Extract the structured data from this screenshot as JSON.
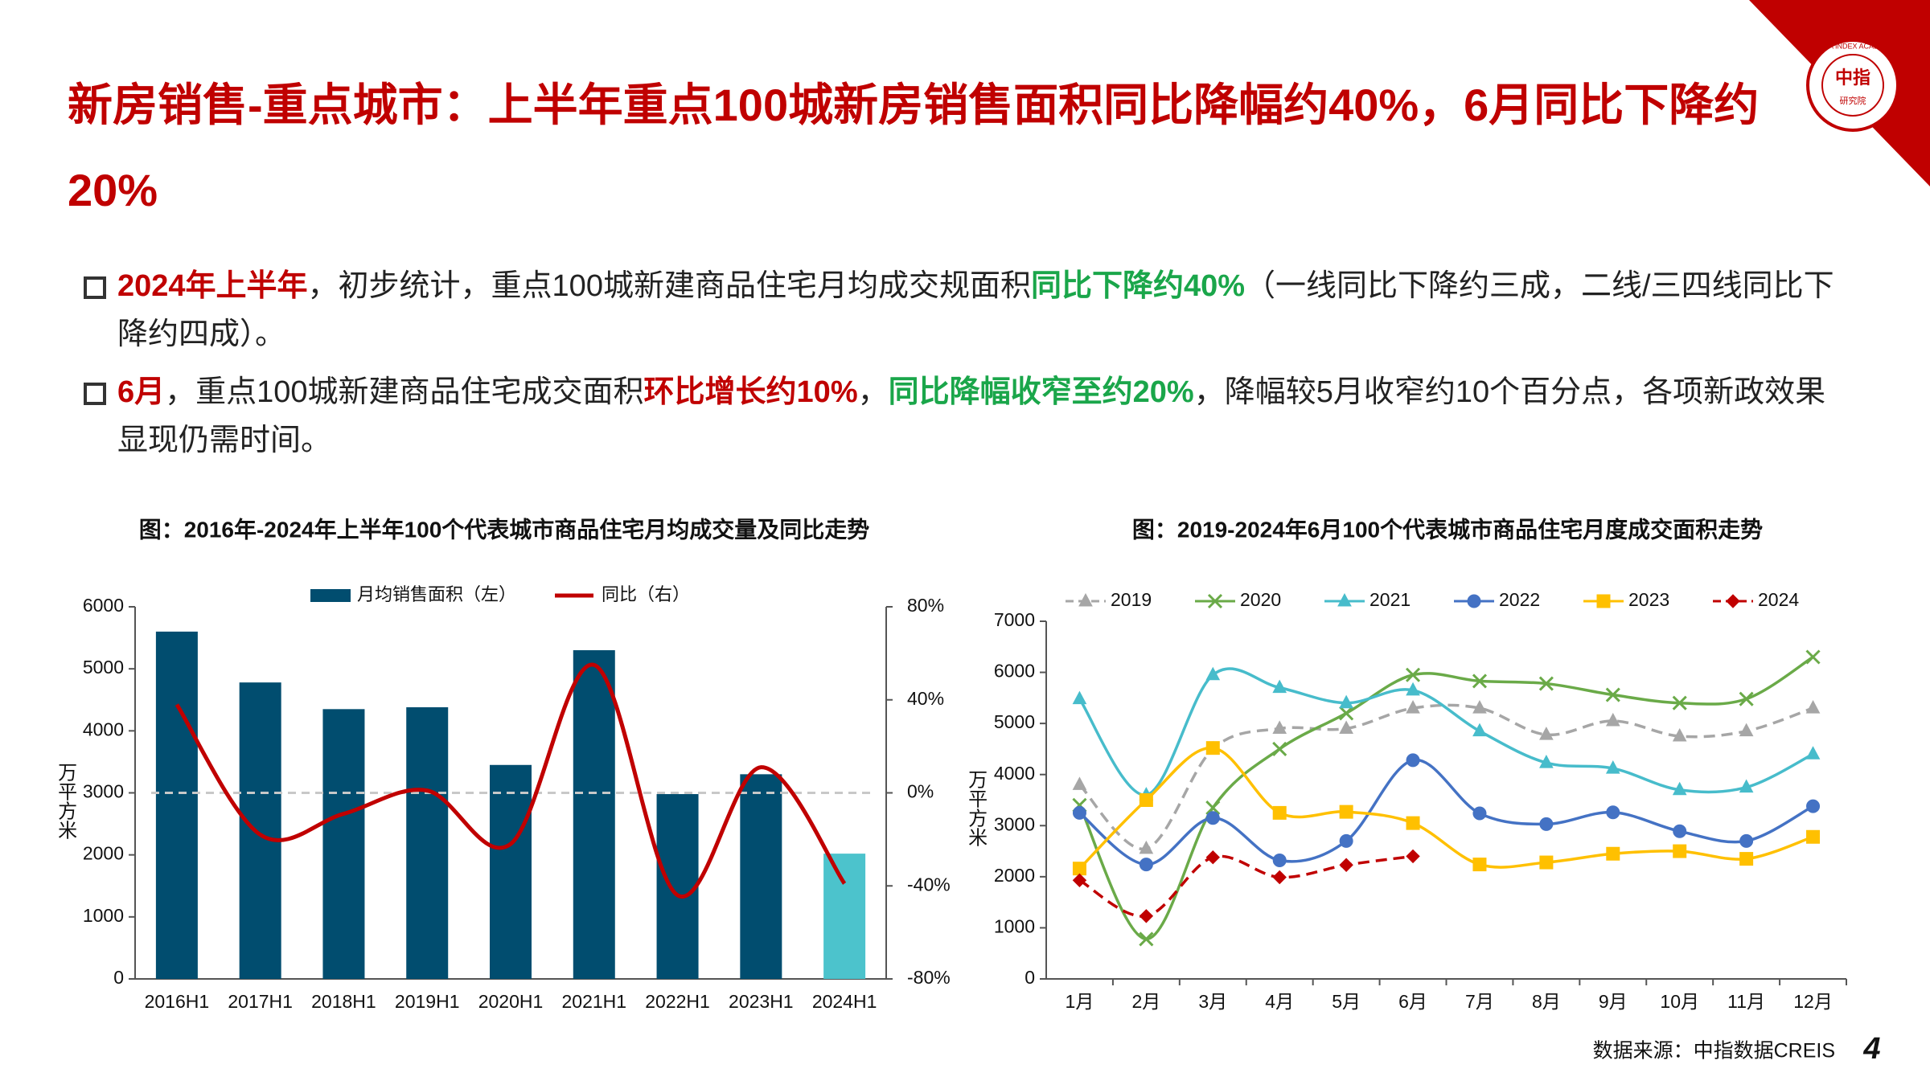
{
  "header": {
    "title": "新房销售-重点城市：上半年重点100城新房销售面积同比降幅约40%，6月同比下降约20%"
  },
  "logo": {
    "name": "CHINA INDEX ACADEMY",
    "mark": "中指",
    "sub": "研究院"
  },
  "bullets": [
    {
      "segments": [
        {
          "text": "2024年上半年",
          "color": "#c00000"
        },
        {
          "text": "，初步统计，重点100城新建商品住宅月均成交规面积"
        },
        {
          "text": "同比下降约40%",
          "color": "#1aa64a"
        },
        {
          "text": "（一线同比下降约三成，二线/三四线同比下降约四成）。"
        }
      ]
    },
    {
      "segments": [
        {
          "text": "6月",
          "color": "#c00000"
        },
        {
          "text": "，重点100城新建商品住宅成交面积"
        },
        {
          "text": "环比增长约10%",
          "color": "#c00000"
        },
        {
          "text": "，"
        },
        {
          "text": "同比降幅收窄至约20%",
          "color": "#1aa64a"
        },
        {
          "text": "，降幅较5月收窄约10个百分点，各项新政效果显现仍需时间。"
        }
      ]
    }
  ],
  "chart_data": [
    {
      "type": "combo",
      "title": "图：2016年-2024年上半年100个代表城市商品住宅月均成交量及同比走势",
      "y_label": "万平方米",
      "categories": [
        "2016H1",
        "2017H1",
        "2018H1",
        "2019H1",
        "2020H1",
        "2021H1",
        "2022H1",
        "2023H1",
        "2024H1"
      ],
      "series": [
        {
          "name": "月均销售面积（左）",
          "type": "bar",
          "color": "#014d6f",
          "colors": [
            "#014d6f",
            "#014d6f",
            "#014d6f",
            "#014d6f",
            "#014d6f",
            "#014d6f",
            "#014d6f",
            "#014d6f",
            "#4cc3cc"
          ],
          "values": [
            5600,
            4780,
            4350,
            4380,
            3450,
            5300,
            2980,
            3300,
            2020
          ]
        },
        {
          "name": "同比（右）",
          "type": "line",
          "axis": "y2",
          "color": "#c00000",
          "values": [
            38,
            -18,
            -9,
            1,
            -22,
            55,
            -44,
            11,
            -39
          ]
        }
      ],
      "ylim": [
        0,
        6000
      ],
      "yticks": [
        0,
        1000,
        2000,
        3000,
        4000,
        5000,
        6000
      ],
      "y2lim": [
        -80,
        80
      ],
      "y2ticks": [
        {
          "value": 80,
          "label": "80%"
        },
        {
          "value": 40,
          "label": "40%"
        },
        {
          "value": 0,
          "label": "0%"
        },
        {
          "value": -40,
          "label": "-40%"
        },
        {
          "value": -80,
          "label": "-80%"
        }
      ],
      "y2_zero_line": true
    },
    {
      "type": "line",
      "title": "图：2019-2024年6月100个代表城市商品住宅月度成交面积走势",
      "y_label": "万平方米",
      "categories": [
        "1月",
        "2月",
        "3月",
        "4月",
        "5月",
        "6月",
        "7月",
        "8月",
        "9月",
        "10月",
        "11月",
        "12月"
      ],
      "series": [
        {
          "name": "2019",
          "color": "#a6a6a6",
          "dash": true,
          "marker": "triangle",
          "values": [
            3800,
            2550,
            4500,
            4900,
            4900,
            5300,
            5300,
            4780,
            5050,
            4750,
            4850,
            5300
          ]
        },
        {
          "name": "2020",
          "color": "#6aaa48",
          "marker": "x",
          "values": [
            3400,
            780,
            3350,
            4500,
            5200,
            5950,
            5830,
            5780,
            5560,
            5400,
            5480,
            6300
          ]
        },
        {
          "name": "2021",
          "color": "#47bccb",
          "marker": "triangle",
          "values": [
            5480,
            3600,
            5950,
            5700,
            5400,
            5650,
            4850,
            4230,
            4120,
            3700,
            3750,
            4400
          ]
        },
        {
          "name": "2022",
          "color": "#4472c4",
          "marker": "circle",
          "values": [
            3250,
            2240,
            3150,
            2320,
            2700,
            4280,
            3240,
            3030,
            3260,
            2890,
            2700,
            3380
          ]
        },
        {
          "name": "2023",
          "color": "#ffc000",
          "marker": "square",
          "values": [
            2160,
            3500,
            4520,
            3250,
            3270,
            3050,
            2240,
            2280,
            2450,
            2500,
            2350,
            2780
          ]
        },
        {
          "name": "2024",
          "color": "#c00000",
          "dash": true,
          "marker": "diamond",
          "values": [
            1930,
            1230,
            2380,
            1990,
            2230,
            2400,
            null,
            null,
            null,
            null,
            null,
            null
          ]
        }
      ],
      "ylim": [
        0,
        7000
      ],
      "yticks": [
        0,
        1000,
        2000,
        3000,
        4000,
        5000,
        6000,
        7000
      ]
    }
  ],
  "source": "数据来源：中指数据CREIS",
  "page_number": "4"
}
